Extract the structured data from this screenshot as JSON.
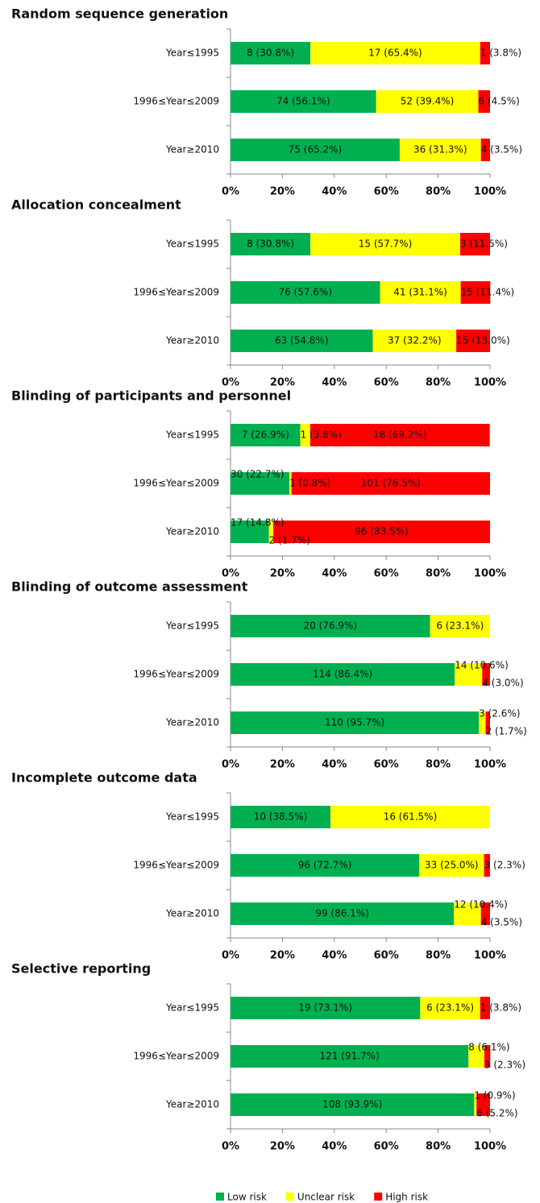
{
  "legend": [
    {
      "name": "Low risk",
      "color": "#00b050"
    },
    {
      "name": "Unclear risk",
      "color": "#ffff00"
    },
    {
      "name": "High risk",
      "color": "#ff0000"
    }
  ],
  "chart_data": [
    {
      "type": "bar",
      "title": "Random sequence generation",
      "categories": [
        "Year≤1995",
        "1996≤Year≤2009",
        "Year≥2010"
      ],
      "series": [
        {
          "values": [
            30.8,
            56.1,
            65.2
          ],
          "value_labels": [
            "8 (30.8%)",
            "74 (56.1%)",
            "75 (65.2%)"
          ]
        },
        {
          "values": [
            65.4,
            39.4,
            31.3
          ],
          "value_labels": [
            "17 (65.4%)",
            "52 (39.4%)",
            "36 (31.3%)"
          ]
        },
        {
          "values": [
            3.8,
            4.5,
            3.5
          ],
          "value_labels": [
            "1 (3.8%)",
            "6 (4.5%)",
            "4 (3.5%)"
          ]
        }
      ],
      "xlim": [
        0,
        100
      ],
      "xticks": [
        {
          "value": 0,
          "label": "0%"
        },
        {
          "value": 20,
          "label": "20%"
        },
        {
          "value": 40,
          "label": "40%"
        },
        {
          "value": 60,
          "label": "60%"
        },
        {
          "value": 80,
          "label": "80%"
        },
        {
          "value": 100,
          "label": "100%"
        }
      ]
    },
    {
      "type": "bar",
      "title": "Allocation concealment",
      "categories": [
        "Year≤1995",
        "1996≤Year≤2009",
        "Year≥2010"
      ],
      "series": [
        {
          "values": [
            30.8,
            57.6,
            54.8
          ],
          "value_labels": [
            "8 (30.8%)",
            "76 (57.6%)",
            "63 (54.8%)"
          ]
        },
        {
          "values": [
            57.7,
            31.1,
            32.2
          ],
          "value_labels": [
            "15 (57.7%)",
            "41 (31.1%)",
            "37 (32.2%)"
          ]
        },
        {
          "values": [
            11.5,
            11.4,
            13.0
          ],
          "value_labels": [
            "3 (11.5%)",
            "15 (11.4%)",
            "15 (13.0%)"
          ]
        }
      ],
      "xlim": [
        0,
        100
      ],
      "xticks": [
        {
          "value": 0,
          "label": "0%"
        },
        {
          "value": 20,
          "label": "20%"
        },
        {
          "value": 40,
          "label": "40%"
        },
        {
          "value": 60,
          "label": "60%"
        },
        {
          "value": 80,
          "label": "80%"
        },
        {
          "value": 100,
          "label": "100%"
        }
      ]
    },
    {
      "type": "bar",
      "title": "Blinding of participants and personnel",
      "categories": [
        "Year≤1995",
        "1996≤Year≤2009",
        "Year≥2010"
      ],
      "series": [
        {
          "values": [
            26.9,
            22.7,
            14.8
          ],
          "value_labels": [
            "7 (26.9%)",
            "30 (22.7%)",
            "17 (14.8%)"
          ]
        },
        {
          "values": [
            3.8,
            0.8,
            1.7
          ],
          "value_labels": [
            "1 (3.8%)",
            "1 (0.8%)",
            "2 (1.7%)"
          ]
        },
        {
          "values": [
            69.2,
            76.5,
            83.5
          ],
          "value_labels": [
            "18 (69.2%)",
            "101 (76.5%)",
            "96 (83.5%)"
          ]
        }
      ],
      "xlim": [
        0,
        100
      ],
      "xticks": [
        {
          "value": 0,
          "label": "0%"
        },
        {
          "value": 20,
          "label": "20%"
        },
        {
          "value": 40,
          "label": "40%"
        },
        {
          "value": 60,
          "label": "60%"
        },
        {
          "value": 80,
          "label": "80%"
        },
        {
          "value": 100,
          "label": "100%"
        }
      ]
    },
    {
      "type": "bar",
      "title": "Blinding of outcome assessment",
      "categories": [
        "Year≤1995",
        "1996≤Year≤2009",
        "Year≥2010"
      ],
      "series": [
        {
          "values": [
            76.9,
            86.4,
            95.7
          ],
          "value_labels": [
            "20 (76.9%)",
            "114 (86.4%)",
            "110 (95.7%)"
          ]
        },
        {
          "values": [
            23.1,
            10.6,
            2.6
          ],
          "value_labels": [
            "6 (23.1%)",
            "14 (10.6%)",
            "3 (2.6%)"
          ]
        },
        {
          "values": [
            null,
            3.0,
            1.7
          ],
          "value_labels": [
            null,
            "4 (3.0%)",
            "2 (1.7%)"
          ]
        }
      ],
      "xlim": [
        0,
        100
      ],
      "xticks": [
        {
          "value": 0,
          "label": "0%"
        },
        {
          "value": 20,
          "label": "20%"
        },
        {
          "value": 40,
          "label": "40%"
        },
        {
          "value": 60,
          "label": "60%"
        },
        {
          "value": 80,
          "label": "80%"
        },
        {
          "value": 100,
          "label": "100%"
        }
      ]
    },
    {
      "type": "bar",
      "title": "Incomplete outcome data",
      "categories": [
        "Year≤1995",
        "1996≤Year≤2009",
        "Year≥2010"
      ],
      "series": [
        {
          "values": [
            38.5,
            72.7,
            86.1
          ],
          "value_labels": [
            "10 (38.5%)",
            "96 (72.7%)",
            "99 (86.1%)"
          ]
        },
        {
          "values": [
            61.5,
            25.0,
            10.4
          ],
          "value_labels": [
            "16 (61.5%)",
            "33 (25.0%)",
            "12 (10.4%)"
          ]
        },
        {
          "values": [
            null,
            2.3,
            3.5
          ],
          "value_labels": [
            null,
            "3 (2.3%)",
            "4 (3.5%)"
          ]
        }
      ],
      "xlim": [
        0,
        100
      ],
      "xticks": [
        {
          "value": 0,
          "label": "0%"
        },
        {
          "value": 20,
          "label": "20%"
        },
        {
          "value": 40,
          "label": "40%"
        },
        {
          "value": 60,
          "label": "60%"
        },
        {
          "value": 80,
          "label": "80%"
        },
        {
          "value": 100,
          "label": "100%"
        }
      ]
    },
    {
      "type": "bar",
      "title": "Selective reporting",
      "categories": [
        "Year≤1995",
        "1996≤Year≤2009",
        "Year≥2010"
      ],
      "series": [
        {
          "values": [
            73.1,
            91.7,
            93.9
          ],
          "value_labels": [
            "19 (73.1%)",
            "121 (91.7%)",
            "108 (93.9%)"
          ]
        },
        {
          "values": [
            23.1,
            6.1,
            0.9
          ],
          "value_labels": [
            "6 (23.1%)",
            "8 (6.1%)",
            "1 (0.9%)"
          ]
        },
        {
          "values": [
            3.8,
            2.3,
            5.2
          ],
          "value_labels": [
            "1 (3.8%)",
            "3 (2.3%)",
            "6 (5.2%)"
          ]
        }
      ],
      "xlim": [
        0,
        100
      ],
      "xticks": [
        {
          "value": 0,
          "label": "0%"
        },
        {
          "value": 20,
          "label": "20%"
        },
        {
          "value": 40,
          "label": "40%"
        },
        {
          "value": 60,
          "label": "60%"
        },
        {
          "value": 80,
          "label": "80%"
        },
        {
          "value": 100,
          "label": "100%"
        }
      ]
    }
  ]
}
